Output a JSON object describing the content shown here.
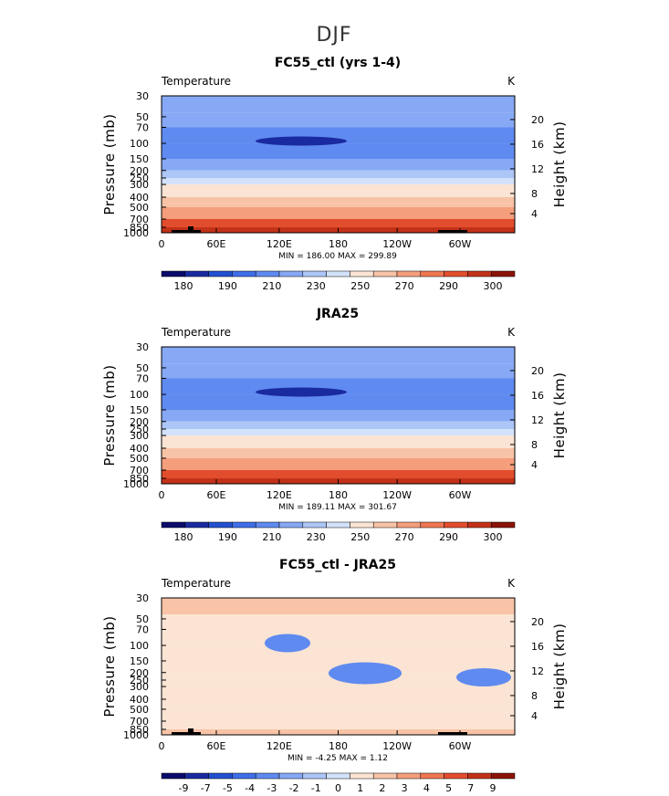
{
  "figure": {
    "suptitle": "DJF",
    "colors": {
      "palette": [
        "#0b0b6b",
        "#1a2aa0",
        "#2350d0",
        "#3f6ee8",
        "#5f8af0",
        "#86a8f5",
        "#adc6f8",
        "#d3e2fb",
        "#fbe4d3",
        "#f8c3a6",
        "#f59e7c",
        "#ef7652",
        "#e24d2e",
        "#c23218",
        "#8b1308"
      ]
    }
  },
  "chart_data": [
    {
      "type": "heatmap",
      "title": "FC55_ctl (yrs 1-4)",
      "variable_label": "Temperature",
      "units_label": "K",
      "ylabel": "Pressure  (mb)",
      "ylabel_right": "Height  (km)",
      "x_tick_labels": [
        "0",
        "60E",
        "120E",
        "180",
        "120W",
        "60W"
      ],
      "y_tick_labels": [
        "30",
        "50",
        "70",
        "100",
        "150",
        "200",
        "250",
        "300",
        "400",
        "500",
        "700",
        "850",
        "1000"
      ],
      "y_right_tick_labels": [
        "4",
        "8",
        "12",
        "16",
        "20"
      ],
      "minmax_text": "MIN = 186.00   MAX = 299.89",
      "min": 186.0,
      "max": 299.89,
      "colorbar_levels": [
        170,
        180,
        185,
        190,
        200,
        210,
        220,
        230,
        240,
        250,
        260,
        270,
        280,
        290,
        300
      ],
      "colorbar_labels": [
        "180",
        "190",
        "210",
        "230",
        "250",
        "270",
        "290",
        "300"
      ],
      "levels_by_pressure": [
        {
          "p_mb": 30,
          "value": 222
        },
        {
          "p_mb": 45,
          "value": 215
        },
        {
          "p_mb": 70,
          "value": 205
        },
        {
          "p_mb": 100,
          "value": 200
        },
        {
          "p_mb": 150,
          "value": 212
        },
        {
          "p_mb": 200,
          "value": 220
        },
        {
          "p_mb": 250,
          "value": 228
        },
        {
          "p_mb": 300,
          "value": 236
        },
        {
          "p_mb": 400,
          "value": 250
        },
        {
          "p_mb": 500,
          "value": 260
        },
        {
          "p_mb": 700,
          "value": 275
        },
        {
          "p_mb": 850,
          "value": 285
        },
        {
          "p_mb": 1000,
          "value": 295
        }
      ]
    },
    {
      "type": "heatmap",
      "title": "JRA25",
      "variable_label": "Temperature",
      "units_label": "K",
      "ylabel": "Pressure  (mb)",
      "ylabel_right": "Height  (km)",
      "x_tick_labels": [
        "0",
        "60E",
        "120E",
        "180",
        "120W",
        "60W"
      ],
      "y_tick_labels": [
        "30",
        "50",
        "70",
        "100",
        "150",
        "200",
        "250",
        "300",
        "400",
        "500",
        "700",
        "850",
        "1000"
      ],
      "y_right_tick_labels": [
        "4",
        "8",
        "12",
        "16",
        "20"
      ],
      "minmax_text": "MIN = 189.11   MAX = 301.67",
      "min": 189.11,
      "max": 301.67,
      "colorbar_levels": [
        170,
        180,
        185,
        190,
        200,
        210,
        220,
        230,
        240,
        250,
        260,
        270,
        280,
        290,
        300
      ],
      "colorbar_labels": [
        "180",
        "190",
        "210",
        "230",
        "250",
        "270",
        "290",
        "300"
      ],
      "levels_by_pressure": [
        {
          "p_mb": 30,
          "value": 222
        },
        {
          "p_mb": 45,
          "value": 215
        },
        {
          "p_mb": 70,
          "value": 205
        },
        {
          "p_mb": 100,
          "value": 200
        },
        {
          "p_mb": 150,
          "value": 212
        },
        {
          "p_mb": 200,
          "value": 220
        },
        {
          "p_mb": 250,
          "value": 228
        },
        {
          "p_mb": 300,
          "value": 236
        },
        {
          "p_mb": 400,
          "value": 250
        },
        {
          "p_mb": 500,
          "value": 260
        },
        {
          "p_mb": 700,
          "value": 275
        },
        {
          "p_mb": 850,
          "value": 285
        },
        {
          "p_mb": 1000,
          "value": 295
        }
      ]
    },
    {
      "type": "heatmap",
      "title": "FC55_ctl - JRA25",
      "variable_label": "Temperature",
      "units_label": "K",
      "ylabel": "Pressure  (mb)",
      "ylabel_right": "Height  (km)",
      "x_tick_labels": [
        "0",
        "60E",
        "120E",
        "180",
        "120W",
        "60W"
      ],
      "y_tick_labels": [
        "30",
        "50",
        "70",
        "100",
        "150",
        "200",
        "250",
        "300",
        "400",
        "500",
        "700",
        "850",
        "1000"
      ],
      "y_right_tick_labels": [
        "4",
        "8",
        "12",
        "16",
        "20"
      ],
      "minmax_text": "MIN =   -4.25   MAX =    1.12",
      "min": -4.25,
      "max": 1.12,
      "colorbar_levels": [
        -10,
        -9,
        -8,
        -7,
        -6,
        -5,
        -4,
        -3,
        -2,
        -1,
        0,
        1,
        2,
        3,
        4,
        5,
        6,
        7,
        8,
        9,
        10
      ],
      "colorbar_labels": [
        "-9",
        "-7",
        "-5",
        "-4",
        "-3",
        "-2",
        "-1",
        "0",
        "1",
        "2",
        "3",
        "4",
        "5",
        "7",
        "9"
      ],
      "levels_by_pressure": [
        {
          "p_mb": 30,
          "value": 0.5
        },
        {
          "p_mb": 45,
          "value": -1
        },
        {
          "p_mb": 100,
          "value": -2
        },
        {
          "p_mb": 200,
          "value": -2
        },
        {
          "p_mb": 300,
          "value": -2
        },
        {
          "p_mb": 500,
          "value": -1
        },
        {
          "p_mb": 700,
          "value": -2
        },
        {
          "p_mb": 850,
          "value": -1
        },
        {
          "p_mb": 1000,
          "value": -1
        }
      ]
    }
  ]
}
